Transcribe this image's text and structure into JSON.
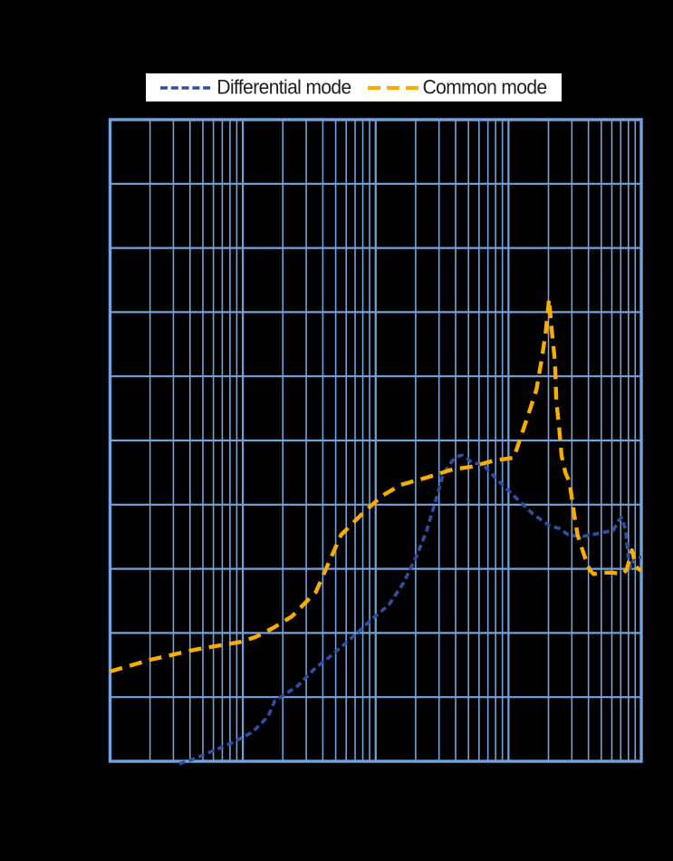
{
  "chart_data": {
    "type": "line",
    "title_visible": false,
    "x_axis": {
      "scale": "log",
      "decades": 4,
      "tick_labels_visible": false,
      "minor_gridlines": "log-spaced 2-9 per decade"
    },
    "y_axis": {
      "divisions": 10,
      "tick_labels_visible": false
    },
    "grid": {
      "visible": true,
      "color": "#74A2DA"
    },
    "legend": {
      "position": "top",
      "background": "#FFFFFF"
    },
    "axis_units_note": "Axis tick labels are not visible (black-on-black). Point x = log decades from left border (0-4); point y = grid divisions from bottom border (0-10).",
    "series": [
      {
        "name": "Differential mode",
        "color": "#2F4FA5",
        "style": "dashed",
        "dash": "7 4.4",
        "width": 3.6,
        "points": [
          [
            0.52,
            -0.04
          ],
          [
            0.62,
            0.03
          ],
          [
            0.75,
            0.14
          ],
          [
            0.91,
            0.28
          ],
          [
            1.07,
            0.45
          ],
          [
            1.19,
            0.7
          ],
          [
            1.24,
            0.94
          ],
          [
            1.41,
            1.17
          ],
          [
            1.55,
            1.46
          ],
          [
            1.65,
            1.62
          ],
          [
            1.85,
            1.98
          ],
          [
            1.98,
            2.23
          ],
          [
            2.1,
            2.44
          ],
          [
            2.21,
            2.78
          ],
          [
            2.31,
            3.21
          ],
          [
            2.38,
            3.57
          ],
          [
            2.45,
            4.05
          ],
          [
            2.51,
            4.48
          ],
          [
            2.58,
            4.69
          ],
          [
            2.61,
            4.75
          ],
          [
            2.65,
            4.77
          ],
          [
            2.69,
            4.72
          ],
          [
            2.72,
            4.66
          ],
          [
            2.81,
            4.62
          ],
          [
            2.9,
            4.42
          ],
          [
            3.04,
            4.14
          ],
          [
            3.18,
            3.86
          ],
          [
            3.31,
            3.67
          ],
          [
            3.38,
            3.63
          ],
          [
            3.45,
            3.53
          ],
          [
            3.54,
            3.5
          ],
          [
            3.63,
            3.53
          ],
          [
            3.72,
            3.57
          ],
          [
            3.79,
            3.6
          ],
          [
            3.83,
            3.75
          ],
          [
            3.85,
            3.8
          ],
          [
            3.88,
            3.63
          ],
          [
            3.9,
            3.21
          ],
          [
            3.92,
            3.01
          ],
          [
            3.95,
            3.18
          ],
          [
            4.0,
            3.18
          ]
        ]
      },
      {
        "name": "Common mode",
        "color": "#F7AC00",
        "style": "dashed",
        "dash": "14 8.5",
        "width": 4.4,
        "points": [
          [
            0.0,
            1.4
          ],
          [
            0.3,
            1.58
          ],
          [
            0.64,
            1.74
          ],
          [
            0.98,
            1.86
          ],
          [
            1.1,
            1.94
          ],
          [
            1.23,
            2.08
          ],
          [
            1.37,
            2.26
          ],
          [
            1.55,
            2.64
          ],
          [
            1.65,
            3.11
          ],
          [
            1.74,
            3.53
          ],
          [
            1.9,
            3.86
          ],
          [
            2.05,
            4.14
          ],
          [
            2.19,
            4.31
          ],
          [
            2.38,
            4.42
          ],
          [
            2.58,
            4.55
          ],
          [
            2.72,
            4.59
          ],
          [
            2.9,
            4.69
          ],
          [
            3.04,
            4.73
          ],
          [
            3.09,
            5.04
          ],
          [
            3.16,
            5.47
          ],
          [
            3.21,
            5.79
          ],
          [
            3.25,
            6.26
          ],
          [
            3.28,
            6.68
          ],
          [
            3.305,
            7.2
          ],
          [
            3.325,
            6.74
          ],
          [
            3.35,
            6.22
          ],
          [
            3.36,
            5.61
          ],
          [
            3.38,
            5.23
          ],
          [
            3.4,
            4.76
          ],
          [
            3.43,
            4.49
          ],
          [
            3.46,
            4.35
          ],
          [
            3.49,
            3.91
          ],
          [
            3.52,
            3.53
          ],
          [
            3.57,
            3.21
          ],
          [
            3.61,
            2.99
          ],
          [
            3.64,
            2.92
          ],
          [
            3.71,
            2.94
          ],
          [
            3.78,
            2.94
          ],
          [
            3.86,
            2.92
          ],
          [
            3.89,
            2.99
          ],
          [
            3.93,
            3.29
          ],
          [
            3.95,
            3.12
          ],
          [
            3.97,
            3.01
          ],
          [
            4.0,
            2.97
          ]
        ]
      }
    ]
  }
}
